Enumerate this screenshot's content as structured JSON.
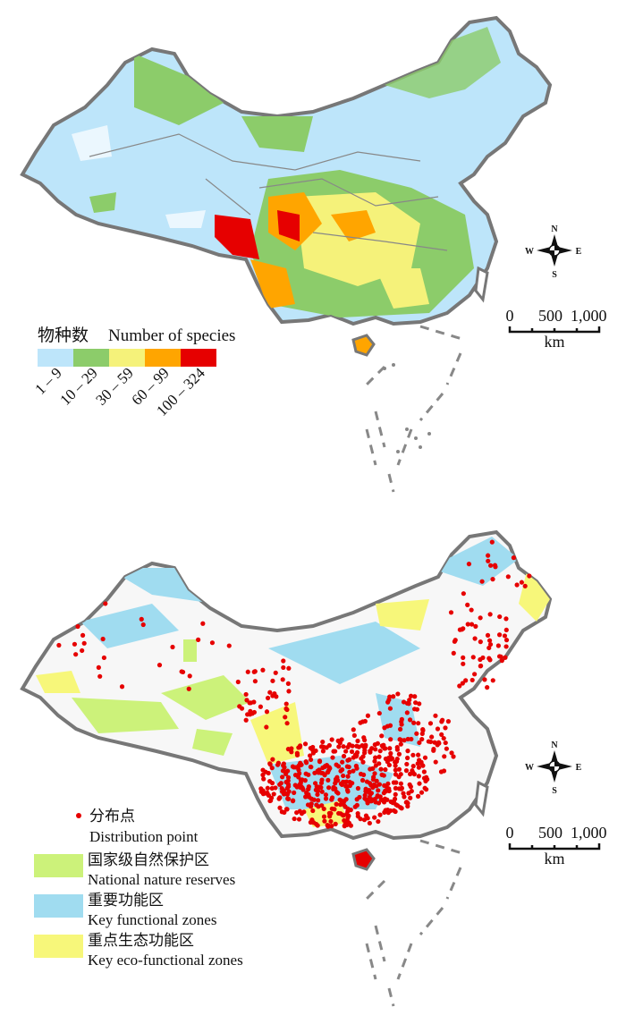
{
  "top_map": {
    "legend": {
      "title_cn": "物种数",
      "title_en": "Number of species",
      "classes": [
        {
          "label": "1 – 9",
          "color": "#bde5fa"
        },
        {
          "label": "10 – 29",
          "color": "#8ccc6a"
        },
        {
          "label": "30 – 59",
          "color": "#f5f27a"
        },
        {
          "label": "60 – 99",
          "color": "#ffa500"
        },
        {
          "label": "100 – 324",
          "color": "#e60000"
        }
      ]
    },
    "compass": {
      "n": "N",
      "s": "S",
      "e": "E",
      "w": "W"
    },
    "scale": {
      "ticks": [
        "0",
        "500",
        "1,000"
      ],
      "unit": "km"
    }
  },
  "bottom_map": {
    "legend": {
      "point": {
        "label_cn": "分布点",
        "label_en": "Distribution point",
        "color": "#e60000"
      },
      "zones": [
        {
          "label_cn": "国家级自然保护区",
          "label_en": "National nature reserves",
          "color": "#ccf27a"
        },
        {
          "label_cn": "重要功能区",
          "label_en": "Key functional zones",
          "color": "#a0dcf0"
        },
        {
          "label_cn": "重点生态功能区",
          "label_en": "Key eco-functional zones",
          "color": "#f7f77a"
        }
      ]
    },
    "compass": {
      "n": "N",
      "s": "S",
      "e": "E",
      "w": "W"
    },
    "scale": {
      "ticks": [
        "0",
        "500",
        "1,000"
      ],
      "unit": "km"
    }
  }
}
